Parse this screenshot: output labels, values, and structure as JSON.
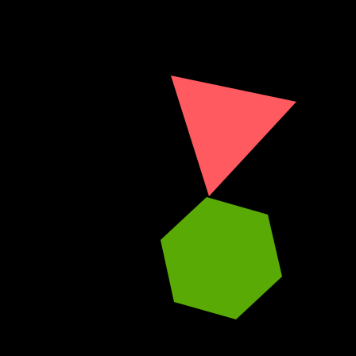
{
  "scene": {
    "background_color": "#000000",
    "shapes": [
      {
        "kind": "triangle",
        "color": "#fe5a60"
      },
      {
        "kind": "hexagon",
        "color": "#5aaa05"
      }
    ]
  }
}
